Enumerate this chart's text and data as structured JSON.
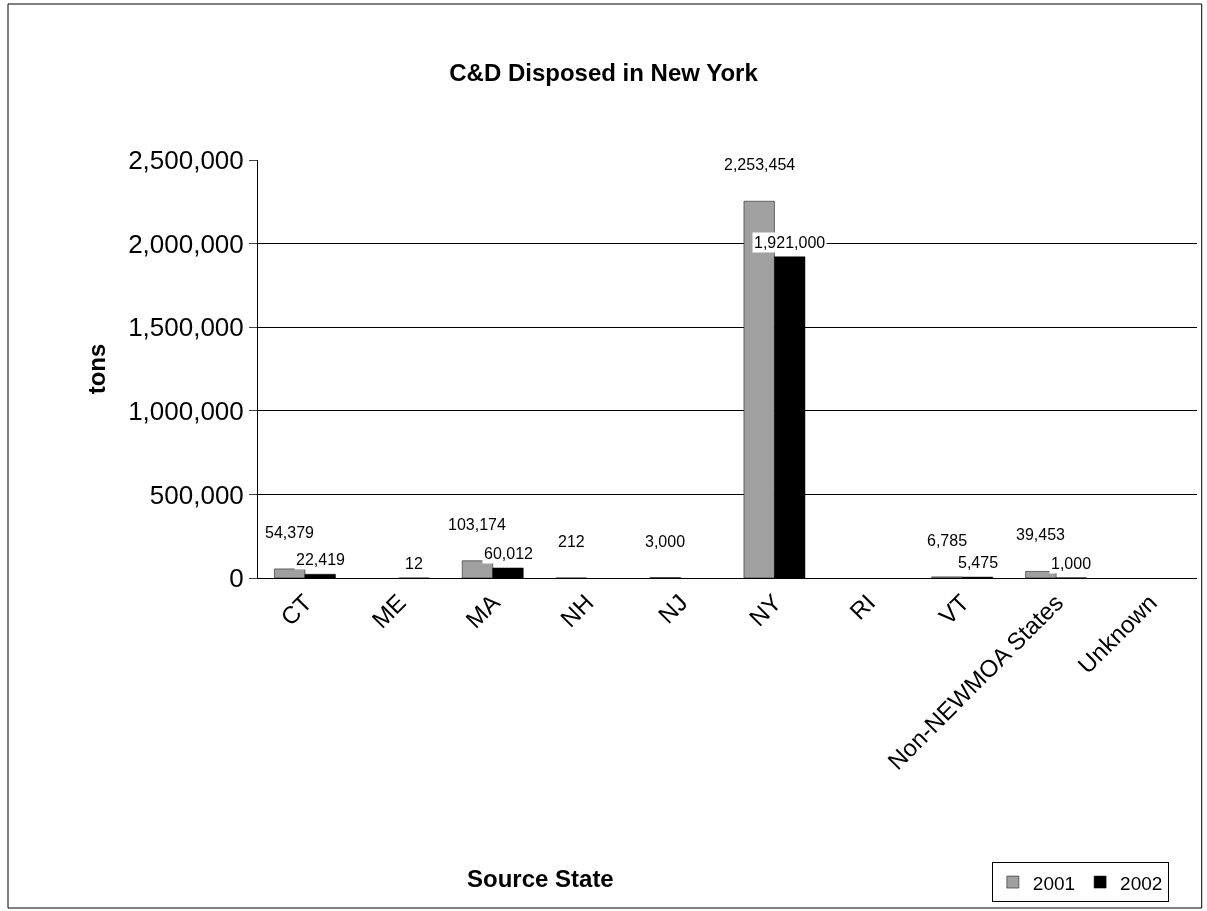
{
  "chart_data": {
    "type": "bar",
    "title": "C&D Disposed in New York",
    "xlabel": "Source State",
    "ylabel": "tons",
    "categories": [
      "CT",
      "ME",
      "MA",
      "NH",
      "NJ",
      "NY",
      "RI",
      "VT",
      "Non-NEWMOA States",
      "Unknown"
    ],
    "series": [
      {
        "name": "2001",
        "color": "#a0a0a0",
        "values": [
          54379,
          null,
          103174,
          212,
          3000,
          2253454,
          null,
          6785,
          39453,
          null
        ],
        "value_labels": [
          "54,379",
          null,
          "103,174",
          "212",
          "3,000",
          "2,253,454",
          null,
          "6,785",
          "39,453",
          null
        ]
      },
      {
        "name": "2002",
        "color": "#000000",
        "values": [
          22419,
          12,
          60012,
          null,
          null,
          1921000,
          null,
          5475,
          1000,
          null
        ],
        "value_labels": [
          "22,419",
          "12",
          "60,012",
          null,
          null,
          "1,921,000",
          null,
          "5,475",
          "1,000",
          null
        ]
      }
    ],
    "ylim": [
      0,
      2500000
    ],
    "yticks": [
      {
        "value": 0,
        "label": "0"
      },
      {
        "value": 500000,
        "label": "500,000"
      },
      {
        "value": 1000000,
        "label": "1,000,000"
      },
      {
        "value": 1500000,
        "label": "1,500,000"
      },
      {
        "value": 2000000,
        "label": "2,000,000"
      },
      {
        "value": 2500000,
        "label": "2,500,000"
      }
    ],
    "grid": "y",
    "legend": "bottom right"
  }
}
